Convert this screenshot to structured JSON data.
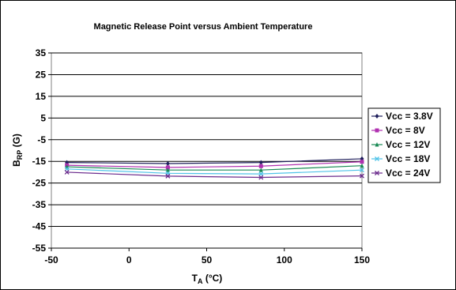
{
  "chart_data": {
    "type": "line",
    "title": "Magnetic Release Point versus Ambient Temperature",
    "xlabel": {
      "main": "T",
      "sub": "A",
      "rest": " (°C)"
    },
    "ylabel": {
      "main": "B",
      "sub": "RP",
      "rest": " (G)"
    },
    "xlim": [
      -50,
      150
    ],
    "ylim": [
      -55,
      35
    ],
    "xticks": [
      -50,
      0,
      50,
      100,
      150
    ],
    "yticks": [
      35,
      25,
      15,
      5,
      -5,
      -15,
      -25,
      -35,
      -45,
      -55
    ],
    "grid": true,
    "legend_position": "right",
    "x": [
      -40,
      25,
      85,
      150
    ],
    "series": [
      {
        "name": "Vcc = 3.8V",
        "values": [
          -15.5,
          -16.0,
          -15.5,
          -13.8
        ],
        "color": "#1f1f5c",
        "marker": "diamond"
      },
      {
        "name": "Vcc = 8V",
        "values": [
          -16.8,
          -17.8,
          -17.2,
          -15.2
        ],
        "color": "#b030b0",
        "marker": "square"
      },
      {
        "name": "Vcc = 12V",
        "values": [
          -17.5,
          -19.0,
          -19.0,
          -17.0
        ],
        "color": "#1a8a55",
        "marker": "triangle"
      },
      {
        "name": "Vcc = 18V",
        "values": [
          -18.5,
          -20.5,
          -20.8,
          -19.0
        ],
        "color": "#4fc3e8",
        "marker": "x"
      },
      {
        "name": "Vcc = 24V",
        "values": [
          -20.0,
          -21.8,
          -22.4,
          -21.7
        ],
        "color": "#6a2a8c",
        "marker": "x"
      }
    ]
  }
}
